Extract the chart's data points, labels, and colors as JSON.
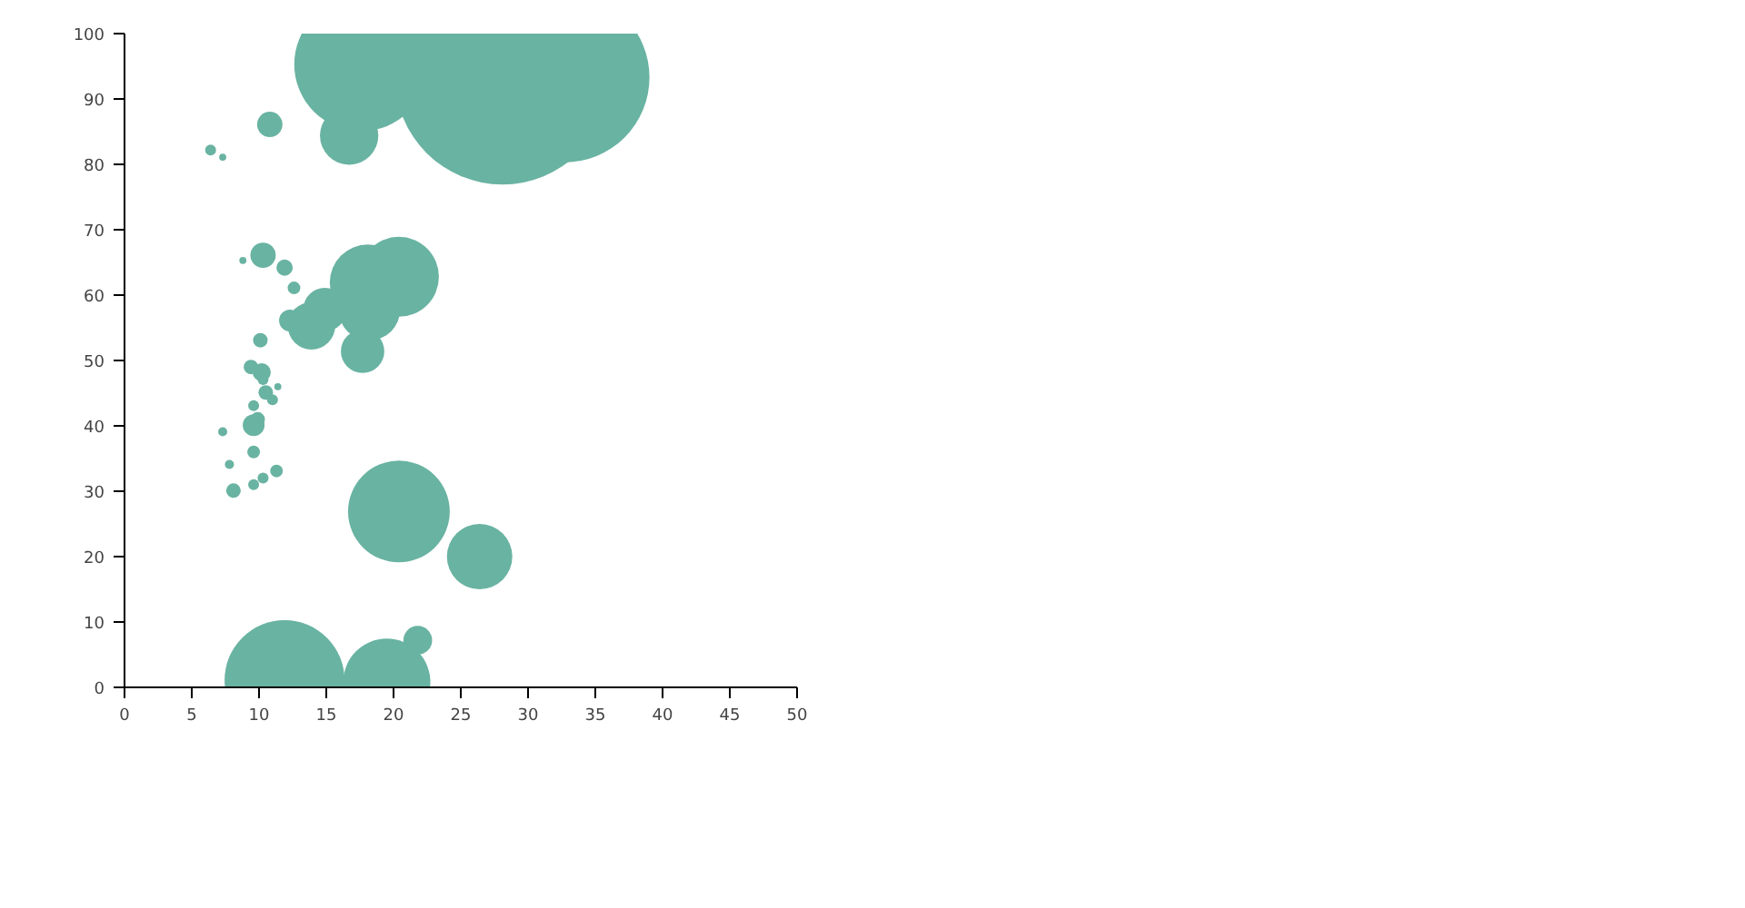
{
  "chart_data": {
    "type": "bubble",
    "color": "#69b3a2",
    "x": [
      28.1,
      32.7,
      17.6,
      16.7,
      10.8,
      6.4,
      7.3,
      10.3,
      11.9,
      8.8,
      12.6,
      20.4,
      18.1,
      18.2,
      17.7,
      13.9,
      14.9,
      12.3,
      10.1,
      9.4,
      10.2,
      10.3,
      11.4,
      10.5,
      11.0,
      9.6,
      9.9,
      9.6,
      7.3,
      9.6,
      7.8,
      11.3,
      10.3,
      9.6,
      8.1,
      20.4,
      26.4,
      21.8,
      11.9,
      19.5
    ],
    "values": [
      93.3,
      93.3,
      95.3,
      84.4,
      86.1,
      82.2,
      81.1,
      66.1,
      64.2,
      65.3,
      61.1,
      62.8,
      61.9,
      57.8,
      51.4,
      55.3,
      57.8,
      56.1,
      53.1,
      49.0,
      48.2,
      47.1,
      46.0,
      45.1,
      44.0,
      43.1,
      41.0,
      40.1,
      39.1,
      36.0,
      34.1,
      33.1,
      32.0,
      31.0,
      30.1,
      26.9,
      20.0,
      7.2,
      1.1,
      0.8
    ],
    "sizes": [
      1,
      0.63,
      0.39,
      0.074,
      0.014,
      0.0026,
      0.0011,
      0.014,
      0.0058,
      0.0011,
      0.0035,
      0.139,
      0.127,
      0.083,
      0.041,
      0.049,
      0.041,
      0.0103,
      0.0046,
      0.0046,
      0.0072,
      0.0026,
      0.0011,
      0.0046,
      0.0026,
      0.0026,
      0.0046,
      0.0103,
      0.0018,
      0.0035,
      0.0018,
      0.0035,
      0.0026,
      0.0026,
      0.0046,
      0.225,
      0.093,
      0.018,
      0.313,
      0.165
    ],
    "xlim": [
      0,
      50
    ],
    "ylim": [
      0,
      100
    ],
    "xticks": [
      0,
      5,
      10,
      15,
      20,
      25,
      30,
      35,
      40,
      45,
      50
    ],
    "yticks": [
      0,
      10,
      20,
      30,
      40,
      50,
      60,
      70,
      80,
      90,
      100
    ],
    "grid": false
  }
}
